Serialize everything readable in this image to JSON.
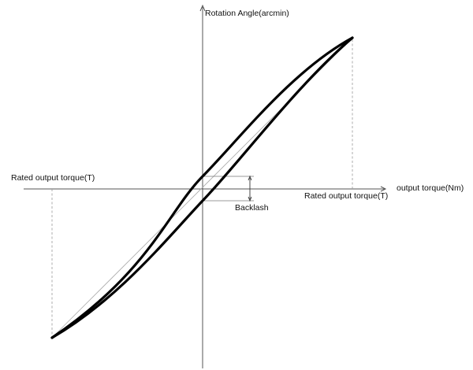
{
  "diagram": {
    "y_axis_label": "Rotation Angle(arcmin)",
    "x_axis_label": "output torque(Nm)",
    "rated_torque_left_label": "Rated output torque(T)",
    "rated_torque_right_label": "Rated output torque(T)",
    "backlash_label": "Backlash",
    "colors": {
      "curve": "#000000",
      "axis": "#555555",
      "guide": "#999999",
      "annotation": "#333333",
      "text": "#111111"
    }
  }
}
